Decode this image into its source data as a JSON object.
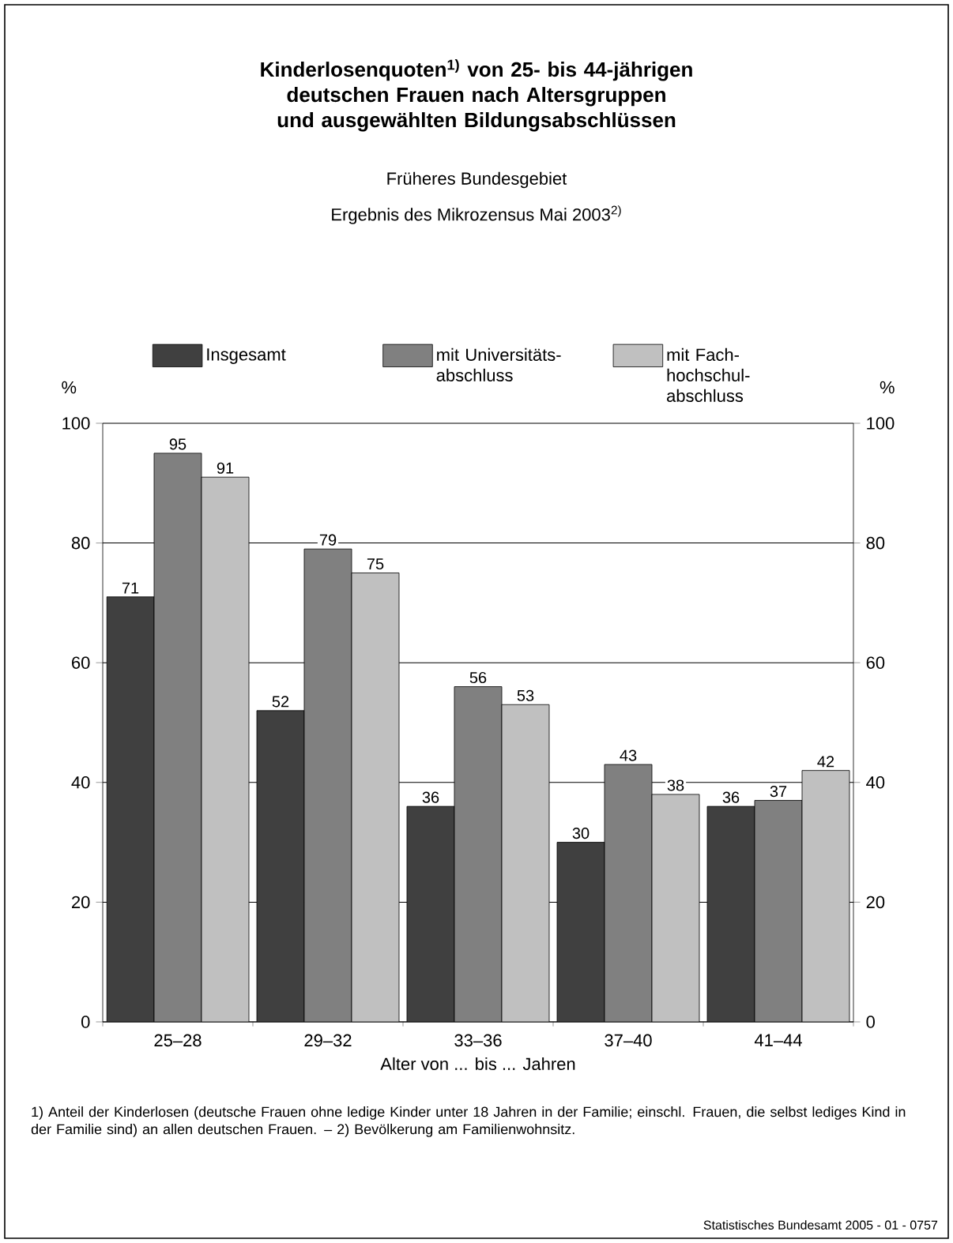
{
  "chart_data": {
    "type": "bar",
    "title": "Kinderlosenquoten$^{1)}$ von 25- bis 44-jährigen deutschen Frauen nach Altersgruppen und ausgewählten Bildungsabschlüssen",
    "subtitle": "Früheres Bundesgebiet",
    "annotations": [
      "Ergebnis des Mikrozensus Mai 2003$^{2)}$",
      "1) Anteil der Kinderlosen (deutsche Frauen ohne ledige Kinder unter 18 Jahren in der Familie; einschl. Frauen, die selbst lediges Kind in der Familie sind) an allen deutschen Frauen. – 2) Bevölkerung am Familienwohnsitz.",
      "Statistisches Bundesamt 2005 - 01 - 0757"
    ],
    "xlabel": "Alter von ... bis ... Jahren",
    "ylabel": "%",
    "y2label": "%",
    "categories": [
      "25–28",
      "29–32",
      "33–36",
      "37–40",
      "41–44"
    ],
    "series": [
      {
        "name": "Insgesamt",
        "color": "#404040",
        "values": [
          71,
          52,
          36,
          30,
          36
        ]
      },
      {
        "name": "mit Universitäts-abschluss",
        "color": "#808080",
        "values": [
          95,
          79,
          56,
          43,
          37
        ]
      },
      {
        "name": "mit Fach-hochschul-abschluss",
        "color": "#c0c0c0",
        "values": [
          91,
          75,
          53,
          38,
          42
        ]
      }
    ],
    "ylim": [
      0,
      100
    ],
    "yticks": [
      0,
      20,
      40,
      60,
      80,
      100
    ],
    "y2lim": [
      0,
      100
    ],
    "y2ticks": [
      0,
      20,
      40,
      60,
      80,
      100
    ],
    "grid": "y",
    "legend": "top",
    "data_labels": true
  }
}
